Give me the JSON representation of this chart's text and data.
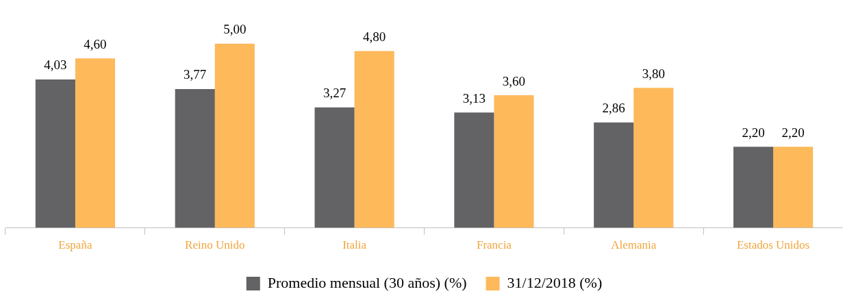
{
  "chart_data": {
    "type": "bar",
    "categories": [
      "España",
      "Reino Unido",
      "Italia",
      "Francia",
      "Alemania",
      "Estados Unidos"
    ],
    "series": [
      {
        "name": "Promedio mensual (30 años) (%)",
        "color": "#636265",
        "values": [
          4.03,
          3.77,
          3.27,
          3.13,
          2.86,
          2.2
        ],
        "value_labels": [
          "4,03",
          "3,77",
          "3,27",
          "3,13",
          "2,86",
          "2,20"
        ]
      },
      {
        "name": "31/12/2018 (%)",
        "color": "#fdb95a",
        "values": [
          4.6,
          5.0,
          4.8,
          3.6,
          3.8,
          2.2
        ],
        "value_labels": [
          "4,60",
          "5,00",
          "4,80",
          "3,60",
          "3,80",
          "2,20"
        ]
      }
    ],
    "grid": false,
    "legend": "bottom"
  }
}
